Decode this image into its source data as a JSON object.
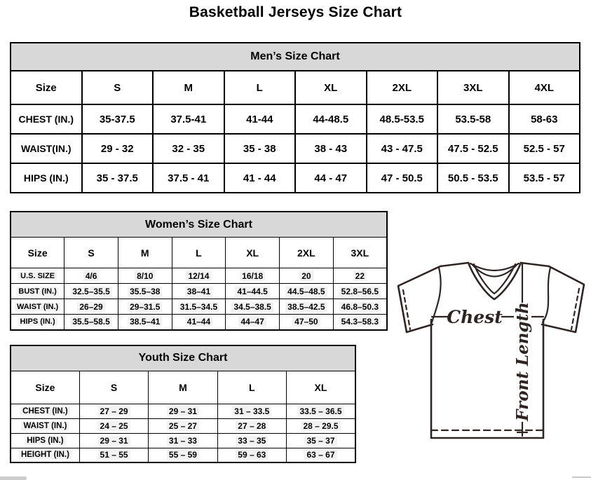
{
  "page": {
    "title": "Basketball Jerseys Size Chart"
  },
  "tables": [
    {
      "id": "mens",
      "title": "Men’s Size Chart",
      "columns": [
        "Size",
        "S",
        "M",
        "L",
        "XL",
        "2XL",
        "3XL",
        "4XL"
      ],
      "rows": [
        {
          "label": "CHEST (IN.)",
          "values": [
            "35-37.5",
            "37.5-41",
            "41-44",
            "44-48.5",
            "48.5-53.5",
            "53.5-58",
            "58-63"
          ]
        },
        {
          "label": "WAIST(IN.)",
          "values": [
            "29 - 32",
            "32 - 35",
            "35 - 38",
            "38 - 43",
            "43 - 47.5",
            "47.5 - 52.5",
            "52.5 - 57"
          ]
        },
        {
          "label": "HIPS (IN.)",
          "values": [
            "35 - 37.5",
            "37.5 - 41",
            "41 - 44",
            "44 - 47",
            "47 - 50.5",
            "50.5 - 53.5",
            "53.5 - 57"
          ]
        }
      ]
    },
    {
      "id": "womens",
      "title": "Women’s Size Chart",
      "columns": [
        "Size",
        "S",
        "M",
        "L",
        "XL",
        "2XL",
        "3XL"
      ],
      "rows": [
        {
          "label": "U.S. SIZE",
          "values": [
            "4/6",
            "8/10",
            "12/14",
            "16/18",
            "20",
            "22"
          ]
        },
        {
          "label": "BUST (IN.)",
          "values": [
            "32.5–35.5",
            "35.5–38",
            "38–41",
            "41–44.5",
            "44.5–48.5",
            "52.8–56.5"
          ]
        },
        {
          "label": "WAIST (IN.)",
          "values": [
            "26–29",
            "29–31.5",
            "31.5–34.5",
            "34.5–38.5",
            "38.5–42.5",
            "46.8–50.3"
          ]
        },
        {
          "label": "HIPS (IN.)",
          "values": [
            "35.5–58.5",
            "38.5–41",
            "41–44",
            "44–47",
            "47–50",
            "54.3–58.3"
          ]
        }
      ]
    },
    {
      "id": "youth",
      "title": "Youth Size Chart",
      "columns": [
        "Size",
        "S",
        "M",
        "L",
        "XL"
      ],
      "rows": [
        {
          "label": "CHEST (IN.)",
          "values": [
            "27 – 29",
            "29 – 31",
            "31 – 33.5",
            "33.5 – 36.5"
          ]
        },
        {
          "label": "WAIST (IN.)",
          "values": [
            "24 – 25",
            "25 – 27",
            "27 – 28",
            "28 – 29.5"
          ]
        },
        {
          "label": "HIPS (IN.)",
          "values": [
            "29 – 31",
            "31 – 33",
            "33 – 35",
            "35 – 37"
          ]
        },
        {
          "label": "HEIGHT (IN.)",
          "values": [
            "51 – 55",
            "55 – 59",
            "59 – 63",
            "63 – 67"
          ]
        }
      ]
    }
  ],
  "diagram": {
    "chest_label": "Chest",
    "front_length_label": "Front Length"
  },
  "colors": {
    "table_title_bg": "#d8d8d8",
    "border": "#000000",
    "diagram_stroke": "#2e2522",
    "scrollbar": "#cccccc"
  }
}
